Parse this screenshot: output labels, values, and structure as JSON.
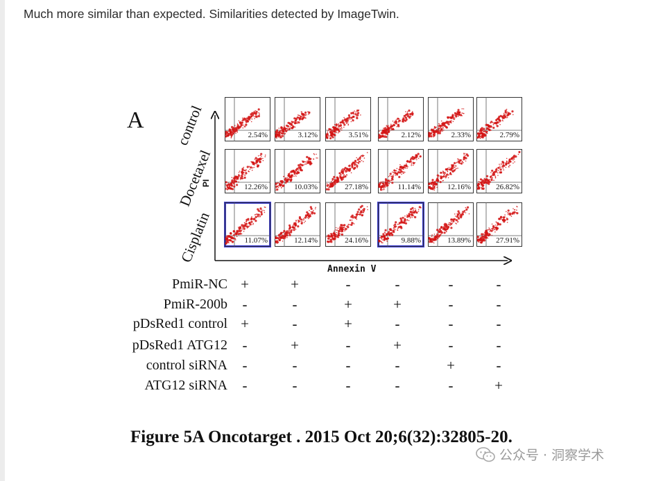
{
  "intro_text": "Much more similar than expected. Similarities detected by ImageTwin.",
  "figure": {
    "panel_letter": "A",
    "row_labels": [
      "control",
      "Docetaxel",
      "Cisplatin"
    ],
    "y_axis_label": "PI",
    "x_axis_label": "Annexin V",
    "rows": [
      {
        "row": "control",
        "percents": [
          "2.54%",
          "3.12%",
          "3.51%",
          "2.12%",
          "2.33%",
          "2.79%"
        ],
        "highlighted": [
          false,
          false,
          false,
          false,
          false,
          false
        ]
      },
      {
        "row": "Docetaxel",
        "percents": [
          "12.26%",
          "10.03%",
          "27.18%",
          "11.14%",
          "12.16%",
          "26.82%"
        ],
        "highlighted": [
          false,
          false,
          false,
          false,
          false,
          false
        ]
      },
      {
        "row": "Cisplatin",
        "percents": [
          "11.07%",
          "12.14%",
          "24.16%",
          "9.88%",
          "13.89%",
          "27.91%"
        ],
        "highlighted": [
          true,
          false,
          false,
          true,
          false,
          false
        ]
      }
    ],
    "highlight_color": "#3a3ad8",
    "dot_color": "#d41515",
    "table": [
      {
        "label": "PmiR-NC",
        "signs": [
          "+",
          "+",
          "-",
          "-",
          "-",
          "-"
        ]
      },
      {
        "label": "PmiR-200b",
        "signs": [
          "-",
          "-",
          "+",
          "+",
          "-",
          "-"
        ]
      },
      {
        "label": "pDsRed1 control",
        "signs": [
          "+",
          "-",
          "+",
          "-",
          "-",
          "-"
        ]
      },
      {
        "label": "pDsRed1 ATG12",
        "signs": [
          "-",
          "+",
          "-",
          "+",
          "-",
          "-"
        ]
      },
      {
        "label": "control siRNA",
        "signs": [
          "-",
          "-",
          "-",
          "-",
          "+",
          "-"
        ]
      },
      {
        "label": "ATG12 siRNA",
        "signs": [
          "-",
          "-",
          "-",
          "-",
          "-",
          "+"
        ]
      }
    ]
  },
  "caption": "Figure 5A Oncotarget . 2015 Oct 20;6(32):32805-20.",
  "watermark": {
    "text": "公众号 · 洞察学术",
    "icon": "wechat-icon"
  }
}
